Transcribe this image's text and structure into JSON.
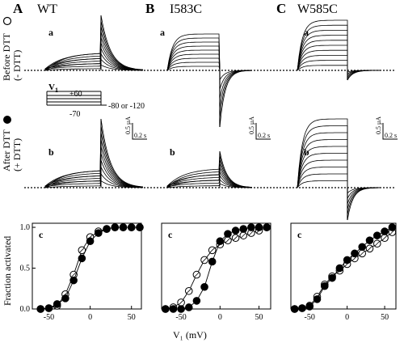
{
  "panels": [
    {
      "letter": "A",
      "name": "WT"
    },
    {
      "letter": "B",
      "name": "I583C"
    },
    {
      "letter": "C",
      "name": "W585C"
    }
  ],
  "rows": {
    "before": {
      "label": "Before DTT",
      "sub": "(- DTT)",
      "marker": "open circle"
    },
    "after": {
      "label": "After DTT",
      "sub": "(+ DTT)",
      "marker": "filled circle"
    }
  },
  "sublabels": {
    "a": "a",
    "b": "b",
    "c": "c"
  },
  "protocol": {
    "v1": "V",
    "v1_sub": "1",
    "top": "+60",
    "hold": "-70",
    "tail": "-80 or -120"
  },
  "scale_bar": {
    "current": "0.5 μA",
    "time": "0.2 s"
  },
  "colors": {
    "open_marker_fill": "#ffffff",
    "filled_marker_fill": "#000000",
    "trace": "#000000"
  },
  "chart_data": [
    {
      "type": "scatter",
      "panel": "A",
      "xlabel": "",
      "ylabel": "Fraction activated",
      "xlim": [
        -70,
        62
      ],
      "ylim": [
        0,
        1.05
      ],
      "xticks": [
        -50,
        0,
        50
      ],
      "yticks": [
        0.0,
        0.5,
        1.0
      ],
      "series": [
        {
          "marker": "open",
          "x": [
            -60,
            -50,
            -40,
            -30,
            -20,
            -10,
            0,
            10,
            20,
            30,
            40,
            50,
            60
          ],
          "y": [
            0.0,
            0.01,
            0.04,
            0.18,
            0.42,
            0.72,
            0.88,
            0.95,
            0.98,
            1.0,
            1.0,
            1.0,
            1.0
          ]
        },
        {
          "marker": "filled",
          "x": [
            -60,
            -50,
            -40,
            -30,
            -20,
            -10,
            0,
            10,
            20,
            30,
            40,
            50,
            60
          ],
          "y": [
            0.0,
            0.01,
            0.06,
            0.13,
            0.35,
            0.62,
            0.83,
            0.93,
            0.98,
            1.0,
            1.0,
            1.0,
            1.0
          ]
        }
      ]
    },
    {
      "type": "scatter",
      "panel": "B",
      "xlabel": "",
      "ylabel": "",
      "xlim": [
        -75,
        65
      ],
      "ylim": [
        0,
        1.05
      ],
      "xticks": [
        -50,
        0,
        50
      ],
      "yticks": [],
      "series": [
        {
          "marker": "open",
          "x": [
            -70,
            -60,
            -50,
            -40,
            -30,
            -20,
            -10,
            0,
            10,
            20,
            30,
            40,
            50,
            60
          ],
          "y": [
            0.0,
            0.02,
            0.08,
            0.22,
            0.42,
            0.6,
            0.72,
            0.79,
            0.84,
            0.87,
            0.9,
            0.93,
            0.96,
            1.0
          ]
        },
        {
          "marker": "filled",
          "x": [
            -70,
            -60,
            -50,
            -40,
            -30,
            -20,
            -10,
            0,
            10,
            20,
            30,
            40,
            50,
            60
          ],
          "y": [
            0.0,
            0.0,
            0.0,
            0.02,
            0.1,
            0.27,
            0.58,
            0.83,
            0.92,
            0.96,
            0.98,
            1.0,
            1.0,
            1.0
          ]
        }
      ]
    },
    {
      "type": "scatter",
      "panel": "C",
      "xlabel": "V₁ (mV)",
      "ylabel": "",
      "xlim": [
        -75,
        65
      ],
      "ylim": [
        0,
        1.05
      ],
      "xticks": [
        -50,
        0,
        50
      ],
      "yticks": [],
      "series": [
        {
          "marker": "open",
          "x": [
            -70,
            -60,
            -50,
            -40,
            -30,
            -20,
            -10,
            0,
            10,
            20,
            30,
            40,
            50,
            60
          ],
          "y": [
            0.0,
            0.01,
            0.04,
            0.15,
            0.3,
            0.4,
            0.47,
            0.55,
            0.62,
            0.68,
            0.74,
            0.8,
            0.87,
            0.94
          ]
        },
        {
          "marker": "filled",
          "x": [
            -70,
            -60,
            -50,
            -40,
            -30,
            -20,
            -10,
            0,
            10,
            20,
            30,
            40,
            50,
            60
          ],
          "y": [
            0.0,
            0.01,
            0.03,
            0.12,
            0.28,
            0.38,
            0.5,
            0.6,
            0.68,
            0.76,
            0.84,
            0.9,
            0.95,
            1.0
          ]
        }
      ]
    }
  ]
}
